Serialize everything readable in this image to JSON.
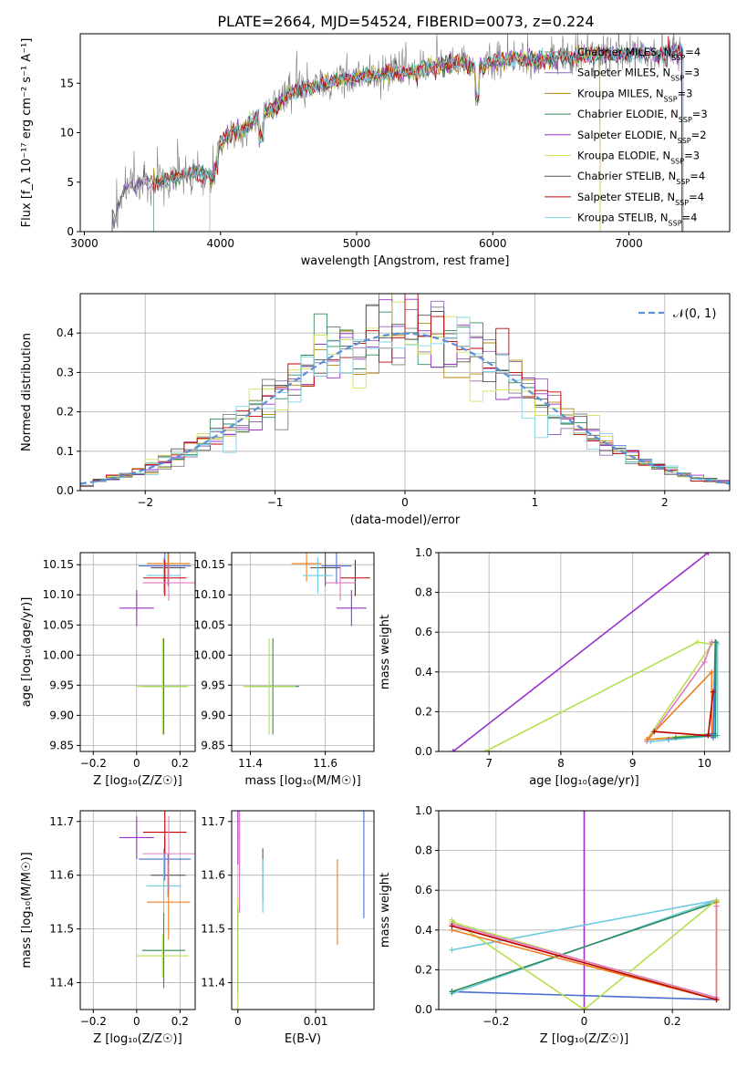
{
  "figure": {
    "title": "PLATE=2664, MJD=54524, FIBERID=0073, z=0.224"
  },
  "colors": [
    "#7f7f7f",
    "#9467bd",
    "#b8860b",
    "#2e8b57",
    "#9932cc",
    "#d4e157",
    "#555555",
    "#c00000",
    "#7fd6e6"
  ],
  "chart_data": [
    {
      "id": "spectrum",
      "type": "line",
      "xlabel": "wavelength [Angstrom, rest frame]",
      "ylabel": "Flux [f_λ 10⁻¹⁷ erg cm⁻² s⁻¹ A⁻¹]",
      "xlim": [
        2970,
        7740
      ],
      "ylim": [
        0,
        20
      ],
      "xticks": [
        3000,
        4000,
        5000,
        6000,
        7000
      ],
      "yticks": [
        0,
        5,
        10,
        15
      ],
      "grid": false,
      "legend_position": "top-right",
      "legend": [
        "Chabrier MILES, N_SSP=4",
        "Salpeter MILES, N_SSP=3",
        "Kroupa MILES, N_SSP=3",
        "Chabrier ELODIE, N_SSP=3",
        "Salpeter ELODIE, N_SSP=2",
        "Kroupa ELODIE, N_SSP=3",
        "Chabrier STELIB, N_SSP=4",
        "Salpeter STELIB, N_SSP=4",
        "Kroupa STELIB, N_SSP=4"
      ],
      "data_x": [
        3200,
        3300,
        3400,
        3500,
        3600,
        3700,
        3800,
        3900,
        4000,
        4100,
        4200,
        4300,
        4400,
        4500,
        4600,
        4700,
        4800,
        4900,
        5000,
        5100,
        5200,
        5300,
        5400,
        5500,
        5600,
        5700,
        5800,
        5900,
        6000,
        6100,
        6200,
        6300,
        6400,
        6500,
        6600,
        6700,
        6800,
        6900,
        7000,
        7100,
        7200,
        7300,
        7400
      ],
      "data_y": [
        0.5,
        4.5,
        5.0,
        4.8,
        5.2,
        5.5,
        6.0,
        5.5,
        9.0,
        10.0,
        10.5,
        12.0,
        12.5,
        14.0,
        14.5,
        14.8,
        15.0,
        15.5,
        15.6,
        15.8,
        16.0,
        16.2,
        16.0,
        16.5,
        16.8,
        17.0,
        17.0,
        16.5,
        17.2,
        17.3,
        17.5,
        17.2,
        17.5,
        17.8,
        17.6,
        17.8,
        18.0,
        17.8,
        18.0,
        18.0,
        17.8,
        18.0,
        18.2
      ]
    },
    {
      "id": "residuals",
      "type": "histogram",
      "xlabel": "(data-model)/error",
      "ylabel": "Normed distribution",
      "xlim": [
        -2.5,
        2.5
      ],
      "ylim": [
        0,
        0.5
      ],
      "xticks": [
        -2,
        -1,
        0,
        1,
        2
      ],
      "yticks": [
        0.0,
        0.1,
        0.2,
        0.3,
        0.4
      ],
      "grid": true,
      "legend_position": "top-right",
      "legend": [
        "𝒩(0, 1)"
      ]
    },
    {
      "id": "age_vs_Z",
      "type": "errorbar",
      "xlabel": "Z [log₁₀(Z/Z☉)]",
      "ylabel": "age  [log₁₀(age/yr)]",
      "xlim": [
        -0.26,
        0.27
      ],
      "ylim": [
        9.84,
        10.17
      ],
      "xticks": [
        -0.2,
        0.0,
        0.2
      ],
      "yticks": [
        9.85,
        9.9,
        9.95,
        10.0,
        10.05,
        10.1,
        10.15
      ],
      "grid": true
    },
    {
      "id": "age_vs_mass",
      "type": "errorbar",
      "xlabel": "mass [log₁₀(M/M☉)]",
      "ylabel": "",
      "xlim": [
        11.35,
        11.73
      ],
      "ylim": [
        9.84,
        10.17
      ],
      "xticks": [
        11.4,
        11.6
      ],
      "yticks": [
        9.85,
        9.9,
        9.95,
        10.0,
        10.05,
        10.1,
        10.15
      ],
      "grid": true
    },
    {
      "id": "weight_vs_age",
      "type": "line",
      "xlabel": "age  [log₁₀(age/yr)]",
      "ylabel": "mass weight",
      "xlim": [
        6.3,
        10.35
      ],
      "ylim": [
        0,
        1
      ],
      "xticks": [
        7,
        8,
        9,
        10
      ],
      "yticks": [
        0.0,
        0.2,
        0.4,
        0.6,
        0.8,
        1.0
      ],
      "grid": true
    },
    {
      "id": "mass_vs_Z",
      "type": "errorbar",
      "xlabel": "Z [log₁₀(Z/Z☉)]",
      "ylabel": "mass [log₁₀(M/M☉)]",
      "xlim": [
        -0.26,
        0.27
      ],
      "ylim": [
        11.35,
        11.72
      ],
      "xticks": [
        -0.2,
        0.0,
        0.2
      ],
      "yticks": [
        11.4,
        11.5,
        11.6,
        11.7
      ],
      "grid": true
    },
    {
      "id": "mass_vs_EBV",
      "type": "errorbar",
      "xlabel": "E(B-V)",
      "ylabel": "",
      "xlim": [
        -0.0008,
        0.0175
      ],
      "ylim": [
        11.35,
        11.72
      ],
      "xticks": [
        0.0,
        0.01
      ],
      "yticks": [
        11.4,
        11.5,
        11.6,
        11.7
      ],
      "grid": true
    },
    {
      "id": "weight_vs_Z",
      "type": "line",
      "xlabel": "Z [log₁₀(Z/Z☉)]",
      "ylabel": "mass weight",
      "xlim": [
        -0.33,
        0.33
      ],
      "ylim": [
        0,
        1
      ],
      "xticks": [
        -0.2,
        0.0,
        0.2
      ],
      "yticks": [
        0.0,
        0.2,
        0.4,
        0.6,
        0.8,
        1.0
      ],
      "grid": true
    }
  ]
}
